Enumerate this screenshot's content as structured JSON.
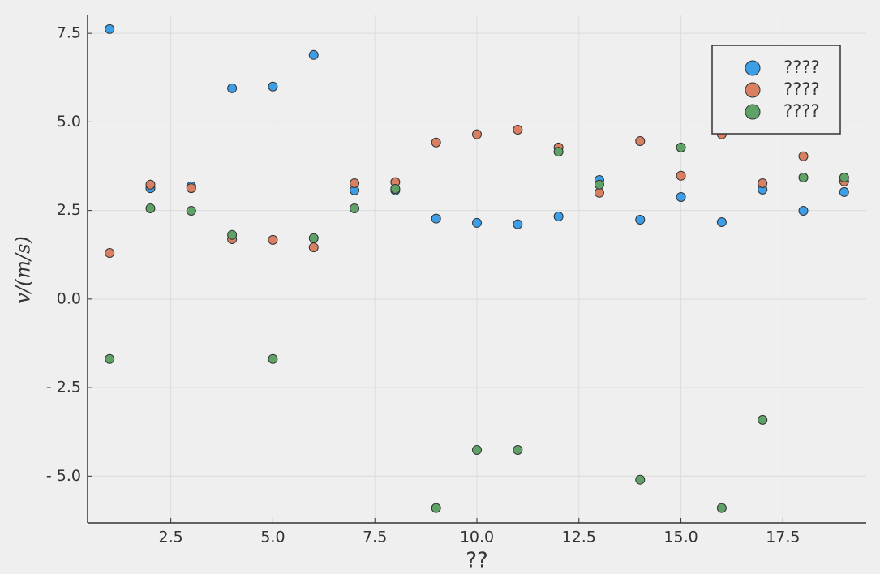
{
  "chart_data": {
    "type": "scatter",
    "x_label": "??",
    "y_label": "v/(m/s)",
    "x": [
      1,
      2,
      3,
      4,
      5,
      6,
      7,
      8,
      9,
      10,
      11,
      12,
      13,
      14,
      15,
      16,
      17,
      18,
      19
    ],
    "series": [
      {
        "name": "????",
        "color": "#3b9ee6",
        "values": [
          7.62,
          3.13,
          3.18,
          5.95,
          6.0,
          6.89,
          3.07,
          3.07,
          2.27,
          2.15,
          2.11,
          2.33,
          3.36,
          2.24,
          2.88,
          2.17,
          3.09,
          2.49,
          3.02
        ]
      },
      {
        "name": "????",
        "color": "#d98062",
        "values": [
          1.3,
          3.23,
          3.13,
          1.69,
          1.67,
          1.46,
          3.27,
          3.3,
          4.42,
          4.65,
          4.78,
          4.28,
          3.0,
          4.46,
          3.48,
          4.65,
          3.27,
          4.03,
          3.32
        ]
      },
      {
        "name": "????",
        "color": "#5fa267",
        "values": [
          -1.69,
          2.56,
          2.49,
          1.81,
          -1.69,
          1.72,
          2.56,
          3.11,
          -5.9,
          -4.26,
          -4.26,
          4.16,
          3.23,
          -5.1,
          4.28,
          -5.9,
          -3.41,
          3.43,
          3.43
        ]
      }
    ],
    "xlim": [
      0.46,
      19.54
    ],
    "ylim": [
      -6.32,
      8.03
    ],
    "xticks": [
      {
        "value": 2.5,
        "label": "2.5"
      },
      {
        "value": 5,
        "label": "5.0"
      },
      {
        "value": 7.5,
        "label": "7.5"
      },
      {
        "value": 10,
        "label": "10.0"
      },
      {
        "value": 12.5,
        "label": "12.5"
      },
      {
        "value": 15,
        "label": "15.0"
      },
      {
        "value": 17.5,
        "label": "17.5"
      }
    ],
    "yticks": [
      {
        "value": -5,
        "label": "- 5.0"
      },
      {
        "value": -2.5,
        "label": "- 2.5"
      },
      {
        "value": 0,
        "label": "0.0"
      },
      {
        "value": 2.5,
        "label": "2.5"
      },
      {
        "value": 5,
        "label": "5.0"
      },
      {
        "value": 7.5,
        "label": "7.5"
      }
    ],
    "grid": true,
    "legend": "top-right"
  }
}
